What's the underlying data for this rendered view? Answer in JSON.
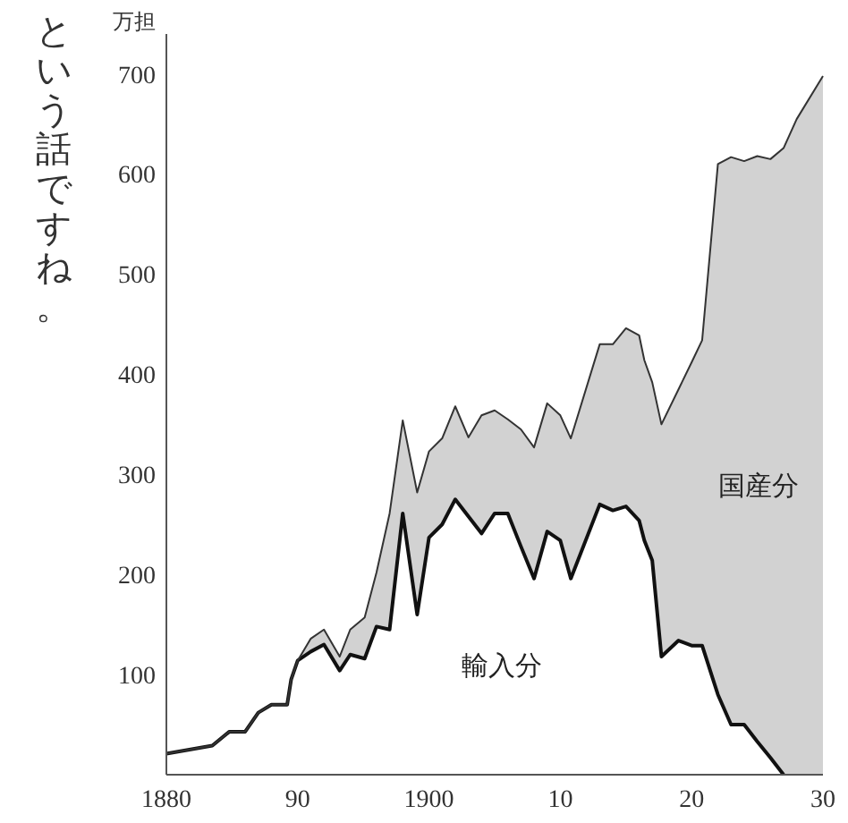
{
  "chart_data": {
    "type": "line",
    "ylabel": "万担",
    "annotations": [
      "という話ですね。"
    ],
    "xlim": [
      1880,
      1930
    ],
    "xticks": [
      1880,
      {
        "value": 1890,
        "label": "90"
      },
      1900,
      {
        "value": 1910,
        "label": "10"
      },
      {
        "value": 1920,
        "label": "20"
      },
      {
        "value": 1930,
        "label": "30"
      }
    ],
    "ylim": [
      0,
      740
    ],
    "yticks": [
      100,
      200,
      300,
      400,
      500,
      600,
      700
    ],
    "grid": false,
    "x": [
      1880,
      1883.5,
      1884.8,
      1886,
      1887,
      1888,
      1889.2,
      1889.5,
      1890,
      1891,
      1892,
      1893.2,
      1894,
      1895.1,
      1896,
      1897,
      1898,
      1899.1,
      1900,
      1901,
      1902,
      1903,
      1904,
      1905,
      1906,
      1907,
      1908,
      1909,
      1910,
      1910.8,
      1913,
      1914,
      1915,
      1916,
      1916.4,
      1917,
      1917.7,
      1919,
      1920,
      1920.8,
      1922,
      1923,
      1924,
      1925,
      1926,
      1927,
      1928,
      1930
    ],
    "series": [
      {
        "name": "輸入分",
        "color": "#111111",
        "values": [
          21,
          29,
          43,
          43,
          62,
          70,
          70,
          95,
          114,
          123,
          130,
          104,
          120,
          116,
          148,
          145,
          261,
          160,
          237,
          250,
          275,
          258,
          241,
          261,
          261,
          228,
          196,
          243,
          234,
          196,
          270,
          264,
          268,
          254,
          234,
          214,
          118,
          134,
          129,
          129,
          80,
          50,
          50,
          33,
          17,
          0,
          null,
          null
        ]
      },
      {
        "name": "国産分",
        "color": "#333333",
        "values": [
          21,
          29,
          43,
          43,
          62,
          70,
          70,
          95,
          114,
          136,
          145,
          118,
          145,
          157,
          202,
          261,
          354,
          282,
          323,
          336,
          368,
          337,
          359,
          364,
          355,
          345,
          327,
          371,
          359,
          336,
          430,
          430,
          446,
          439,
          414,
          392,
          350,
          385,
          412,
          434,
          610,
          617,
          613,
          618,
          615,
          626,
          655,
          698
        ],
        "lower": [
          21,
          29,
          43,
          43,
          62,
          70,
          70,
          95,
          114,
          123,
          130,
          104,
          120,
          116,
          148,
          145,
          261,
          160,
          237,
          250,
          275,
          258,
          241,
          261,
          261,
          228,
          196,
          243,
          234,
          196,
          270,
          264,
          268,
          254,
          234,
          214,
          118,
          134,
          129,
          129,
          80,
          50,
          50,
          33,
          17,
          0,
          0,
          0
        ],
        "upper": [
          21,
          29,
          43,
          43,
          62,
          70,
          70,
          95,
          114,
          136,
          145,
          118,
          145,
          157,
          202,
          261,
          354,
          282,
          323,
          336,
          368,
          337,
          359,
          364,
          355,
          345,
          327,
          371,
          359,
          336,
          430,
          430,
          446,
          439,
          414,
          392,
          350,
          385,
          412,
          434,
          610,
          617,
          613,
          618,
          615,
          626,
          655,
          698
        ]
      }
    ]
  }
}
